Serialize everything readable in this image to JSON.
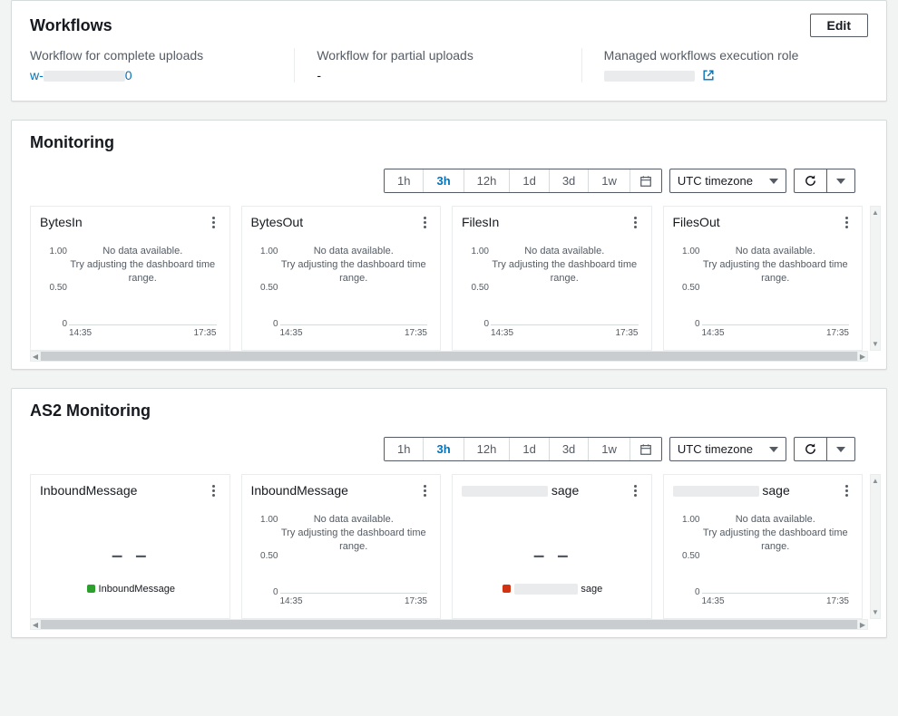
{
  "colors": {
    "link": "#0073bb",
    "text_muted": "#545b64",
    "border": "#d5dbdb",
    "legend_green": "#2ca02c",
    "legend_red": "#d13212"
  },
  "workflows": {
    "title": "Workflows",
    "edit_label": "Edit",
    "cols": [
      {
        "label": "Workflow for complete uploads",
        "value_prefix": "w-",
        "value_suffix": "0",
        "type": "link_blurred"
      },
      {
        "label": "Workflow for partial uploads",
        "value": "-",
        "type": "plain"
      },
      {
        "label": "Managed workflows execution role",
        "type": "blurred_ext"
      }
    ]
  },
  "time_ranges": [
    "1h",
    "3h",
    "12h",
    "1d",
    "3d",
    "1w"
  ],
  "active_range": "3h",
  "tz_label": "UTC timezone",
  "nodata_line1": "No data available.",
  "nodata_line2": "Try adjusting the dashboard time range.",
  "axis": {
    "y_ticks": [
      "1.00",
      "0.50",
      "0"
    ],
    "x_start": "14:35",
    "x_end": "17:35"
  },
  "monitoring": {
    "title": "Monitoring",
    "charts": [
      {
        "title": "BytesIn",
        "mode": "nodata"
      },
      {
        "title": "BytesOut",
        "mode": "nodata"
      },
      {
        "title": "FilesIn",
        "mode": "nodata"
      },
      {
        "title": "FilesOut",
        "mode": "nodata"
      }
    ]
  },
  "as2": {
    "title": "AS2 Monitoring",
    "charts": [
      {
        "title": "InboundMessage",
        "mode": "legend",
        "legend_text": "InboundMessage",
        "legend_color": "#2ca02c"
      },
      {
        "title": "InboundMessage",
        "mode": "nodata"
      },
      {
        "title_suffix": "sage",
        "title_blurred": true,
        "mode": "legend",
        "legend_suffix": "sage",
        "legend_blurred": true,
        "legend_color": "#d13212"
      },
      {
        "title_suffix": "sage",
        "title_blurred": true,
        "mode": "nodata"
      }
    ]
  }
}
